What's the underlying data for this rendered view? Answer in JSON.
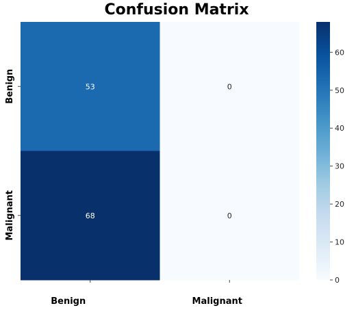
{
  "chart_data": {
    "type": "heatmap",
    "title": "Confusion Matrix",
    "xlabel": "",
    "ylabel": "",
    "x_categories": [
      "Benign",
      "Malignant"
    ],
    "y_categories": [
      "Benign",
      "Malignant"
    ],
    "values": [
      [
        53,
        0
      ],
      [
        68,
        0
      ]
    ],
    "colormap": "Blues",
    "color_low": "#f7fbff",
    "color_high": "#08306b",
    "cell_text_dark": "#262626",
    "cell_text_light": "#ffffff",
    "colorbar": {
      "vmin": 0,
      "vmax": 68,
      "ticks": [
        0,
        10,
        20,
        30,
        40,
        50,
        60
      ]
    }
  }
}
